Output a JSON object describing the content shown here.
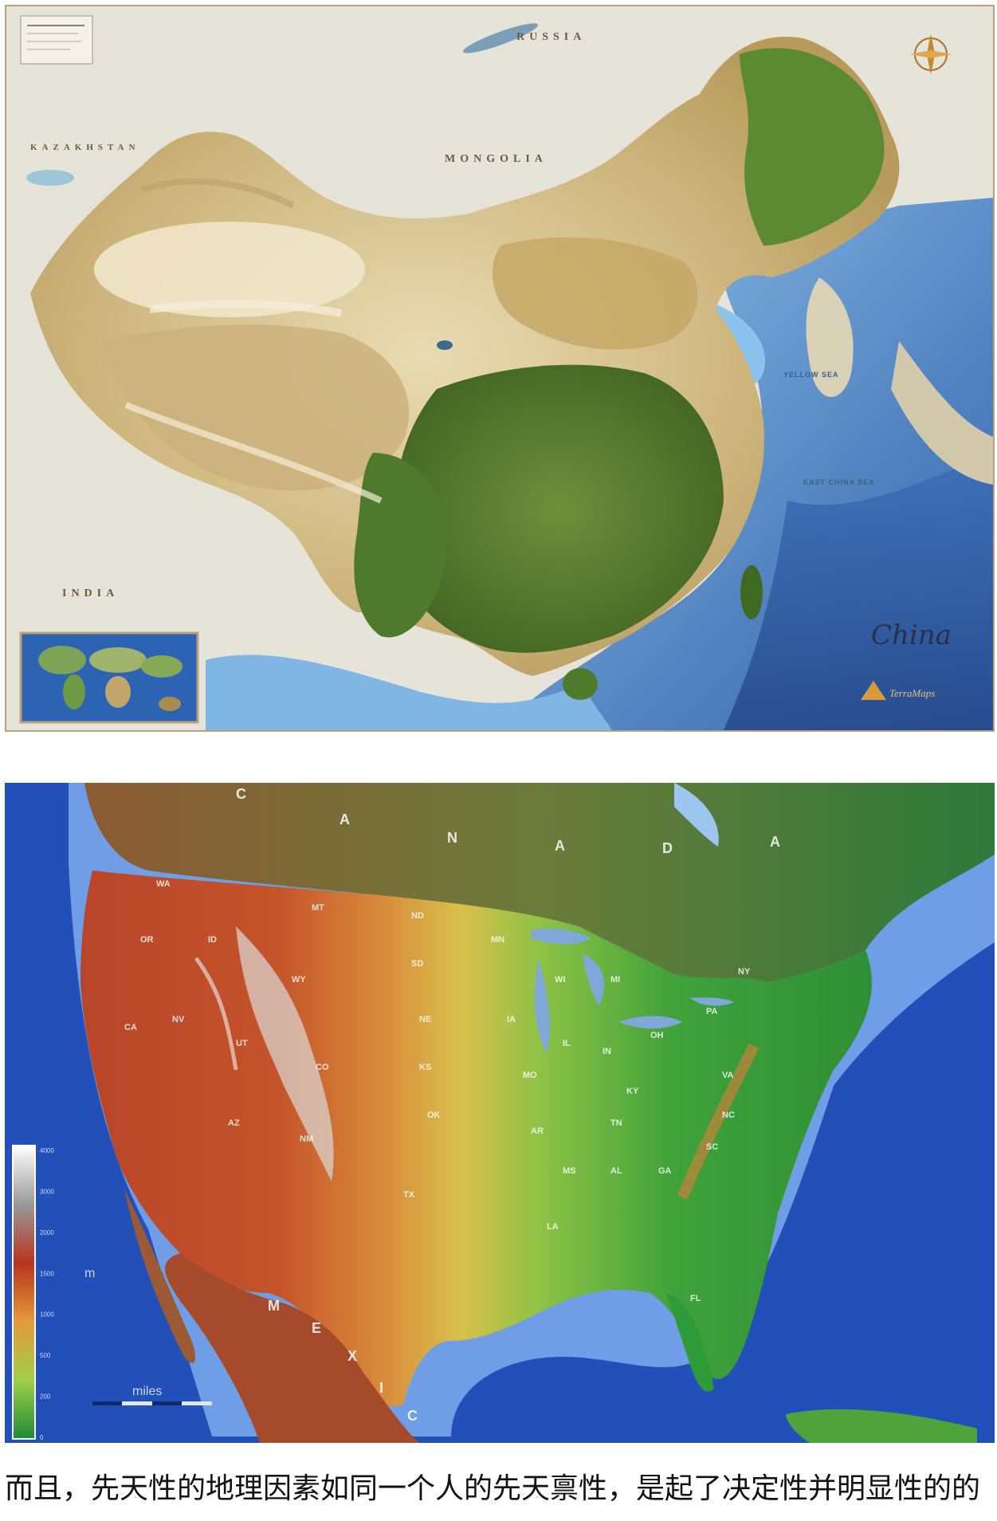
{
  "china_map": {
    "title": "China",
    "brand": "TerraMaps",
    "labels": {
      "russia": "RUSSIA",
      "kazakhstan": "KAZAKHSTAN",
      "mongolia": "MONGOLIA",
      "india": "INDIA",
      "yellow_sea": "YELLOW SEA",
      "east_china_sea": "EAST CHINA SEA"
    }
  },
  "us_map": {
    "country_letters": [
      "C",
      "A",
      "N",
      "A",
      "D",
      "A"
    ],
    "mexico_letters": [
      "M",
      "E",
      "X",
      "I",
      "C"
    ],
    "state_labels": [
      "MT",
      "ID",
      "CA",
      "NV",
      "UT",
      "CO",
      "AZ",
      "NM",
      "TX",
      "OK",
      "KS",
      "NE",
      "SD",
      "ND",
      "MN",
      "WI",
      "MI",
      "IA",
      "IL",
      "IN",
      "OH",
      "PA",
      "NY",
      "KY",
      "TN",
      "MS",
      "AL",
      "GA",
      "SC",
      "NC",
      "VA",
      "LA",
      "AR",
      "MO",
      "FL",
      "WY",
      "OR",
      "WA"
    ],
    "legend": {
      "unit": "m",
      "scale_label": "miles",
      "tick_values": [
        "4000",
        "3000",
        "2000",
        "1500",
        "1000",
        "500",
        "200",
        "0"
      ]
    }
  },
  "caption": "而且，先天性的地理因素如同一个人的先天禀性，是起了决定性并明显性的的"
}
